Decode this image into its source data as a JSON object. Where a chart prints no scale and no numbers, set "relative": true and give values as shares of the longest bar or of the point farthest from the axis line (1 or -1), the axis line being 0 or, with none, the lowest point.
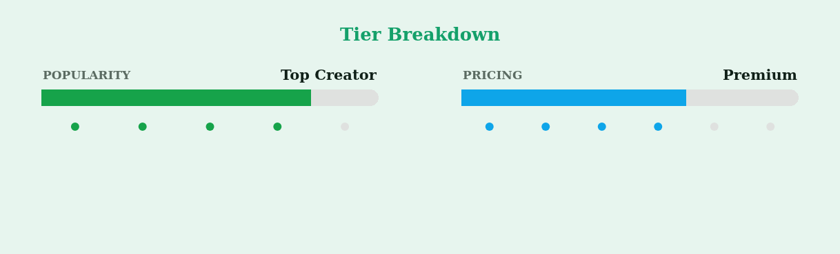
{
  "chart_data": [
    {
      "type": "other",
      "title": "Tier Breakdown"
    },
    {
      "type": "bar",
      "title": "POPULARITY",
      "annotations": [
        "Top Creator"
      ],
      "orientation": "horizontal",
      "stacked": true,
      "relative": true,
      "categories": [
        null
      ],
      "series": [
        {
          "color": "#16a34a",
          "values": [
            0.8
          ]
        },
        {
          "color": "#dfe1df",
          "values": [
            0.2
          ]
        }
      ],
      "tick_labels": false
    },
    {
      "type": "bar",
      "title": "PRICING",
      "annotations": [
        "Premium"
      ],
      "orientation": "horizontal",
      "stacked": true,
      "relative": true,
      "categories": [
        null
      ],
      "series": [
        {
          "color": "#0ea5e9",
          "values": [
            0.667
          ]
        },
        {
          "color": "#dfe1df",
          "values": [
            0.333
          ]
        }
      ],
      "tick_labels": false
    }
  ]
}
